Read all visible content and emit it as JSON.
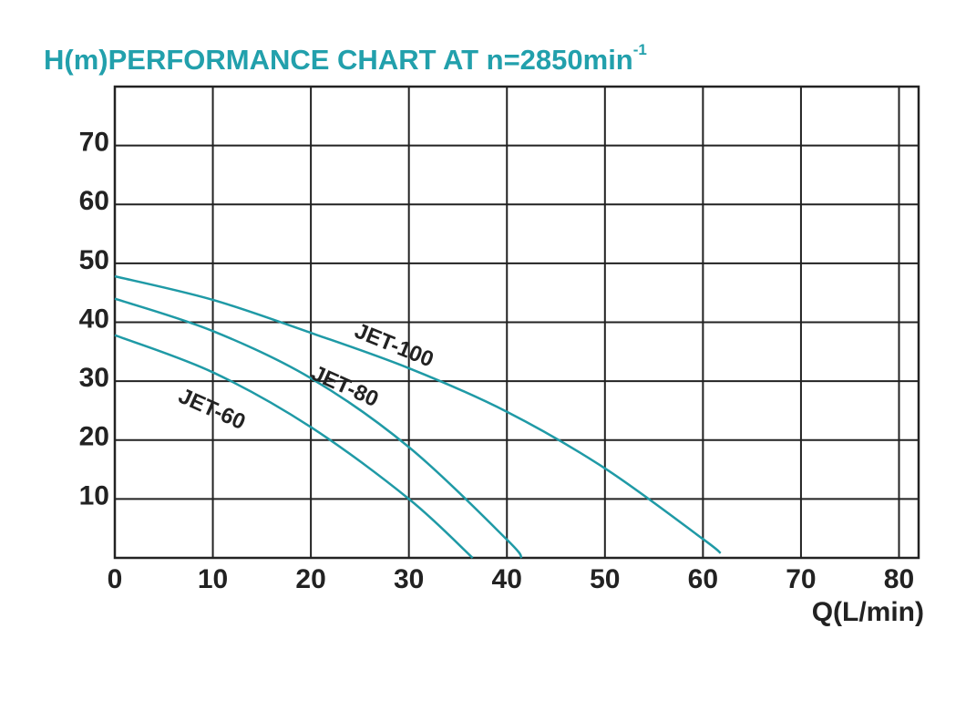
{
  "chart_data": {
    "type": "line",
    "title": "H(m)PERFORMANCE CHART AT n=2850min",
    "title_superscript": "-1",
    "x_label": "Q(L/min)",
    "xlim": [
      0,
      82
    ],
    "xticks": [
      0,
      10,
      20,
      30,
      40,
      50,
      60,
      70,
      80
    ],
    "ylim": [
      0,
      80
    ],
    "yticks": [
      10,
      20,
      30,
      40,
      50,
      60,
      70
    ],
    "grid": true,
    "series": [
      {
        "name": "JET-100",
        "color": "#1f9aa6",
        "x": [
          0,
          10,
          20,
          30,
          40,
          50,
          60,
          61.8
        ],
        "values": [
          47.8,
          43.8,
          38.2,
          32.2,
          24.8,
          15.2,
          3.2,
          0.8
        ]
      },
      {
        "name": "JET-80",
        "color": "#1f9aa6",
        "x": [
          0,
          10,
          20,
          30,
          40,
          41.5
        ],
        "values": [
          44,
          38.5,
          30.5,
          18.8,
          3.1,
          0
        ]
      },
      {
        "name": "JET-60",
        "color": "#1f9aa6",
        "x": [
          0,
          10,
          20,
          30,
          36.5
        ],
        "values": [
          37.8,
          31.5,
          22.2,
          10,
          0
        ]
      }
    ]
  }
}
